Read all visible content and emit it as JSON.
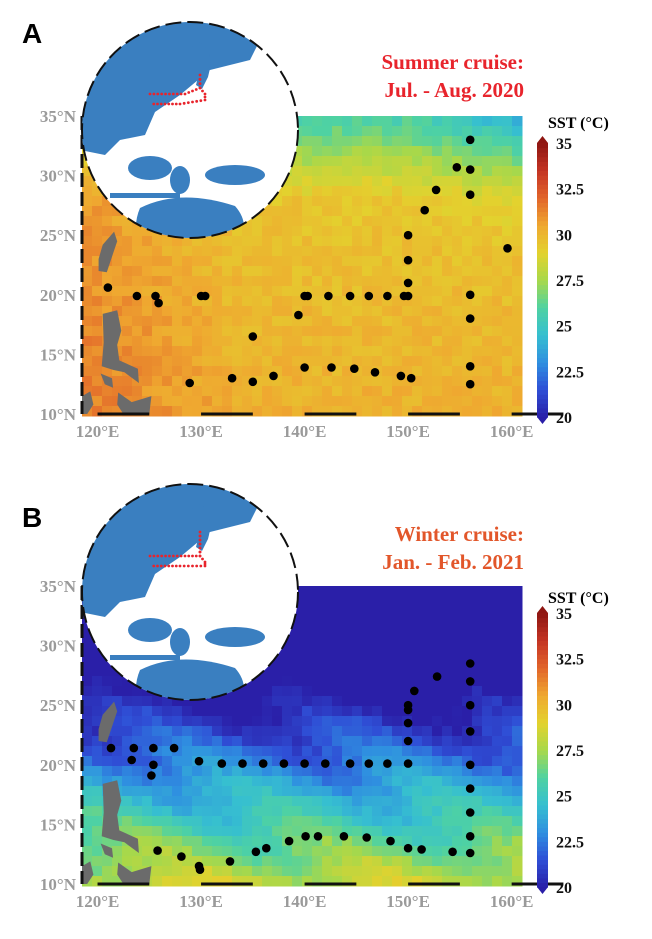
{
  "colors": {
    "summer_title": "#e8242c",
    "winter_title": "#e2562a",
    "axis_text": "#9a9a9a",
    "land": "#6b6b6b",
    "station": "#000000",
    "ocean_inset": "#3a7fc0",
    "route": "#e8242c",
    "colormap": [
      "#2a1fa8",
      "#2f4fd6",
      "#2f8fe0",
      "#36bfd0",
      "#4fd2a2",
      "#a8d84a",
      "#e3d22e",
      "#efa830",
      "#e2652a",
      "#c43424",
      "#8e1612"
    ]
  },
  "axes": {
    "lon_range": [
      118.5,
      161
    ],
    "lat_range": [
      10,
      35
    ],
    "x_ticks": [
      120,
      130,
      140,
      150,
      160
    ],
    "y_ticks": [
      10,
      15,
      20,
      25,
      30,
      35
    ],
    "x_tick_labels": [
      "120°E",
      "130°E",
      "140°E",
      "150°E",
      "160°E"
    ],
    "y_tick_labels": [
      "10°N",
      "15°N",
      "20°N",
      "25°N",
      "30°N",
      "35°N"
    ]
  },
  "colorbar": {
    "title": "SST (°C)",
    "range": [
      20,
      35
    ],
    "ticks": [
      20,
      22.5,
      25,
      27.5,
      30,
      32.5,
      35
    ],
    "tick_labels": [
      "20",
      "22.5",
      "25",
      "27.5",
      "30",
      "32.5",
      "35"
    ]
  },
  "panels": [
    {
      "letter": "A",
      "title_line1": "Summer cruise:",
      "title_line2": "Jul. - Aug. 2020",
      "sst_model": {
        "base": 30.2,
        "lat_gradient": -0.04,
        "north_cool": 3.5,
        "north_cool_start": 28,
        "west_warm": 1.2
      },
      "stations": [
        [
          121.0,
          20.6
        ],
        [
          123.8,
          19.9
        ],
        [
          125.6,
          19.9
        ],
        [
          125.9,
          19.3
        ],
        [
          130.0,
          19.9
        ],
        [
          130.4,
          19.9
        ],
        [
          135.0,
          16.5
        ],
        [
          139.4,
          18.3
        ],
        [
          140.0,
          19.9
        ],
        [
          140.3,
          19.9
        ],
        [
          142.3,
          19.9
        ],
        [
          144.4,
          19.9
        ],
        [
          146.2,
          19.9
        ],
        [
          148.0,
          19.9
        ],
        [
          149.6,
          19.9
        ],
        [
          150.0,
          19.9
        ],
        [
          150.0,
          21.0
        ],
        [
          150.0,
          22.9
        ],
        [
          150.0,
          25.0
        ],
        [
          151.6,
          27.1
        ],
        [
          152.7,
          28.8
        ],
        [
          154.7,
          30.7
        ],
        [
          156.0,
          30.5
        ],
        [
          156.0,
          28.4
        ],
        [
          156.0,
          33.0
        ],
        [
          159.6,
          23.9
        ],
        [
          156.0,
          20.0
        ],
        [
          156.0,
          18.0
        ],
        [
          156.0,
          14.0
        ],
        [
          156.0,
          12.5
        ],
        [
          128.9,
          12.6
        ],
        [
          133.0,
          13.0
        ],
        [
          135.0,
          12.7
        ],
        [
          137.0,
          13.2
        ],
        [
          140.0,
          13.9
        ],
        [
          142.6,
          13.9
        ],
        [
          144.8,
          13.8
        ],
        [
          146.8,
          13.5
        ],
        [
          149.3,
          13.2
        ],
        [
          150.3,
          13.0
        ]
      ]
    },
    {
      "letter": "B",
      "title_line1": "Winter cruise:",
      "title_line2": "Jan. - Feb. 2021",
      "sst_model": {
        "base": 28.2,
        "lat_gradient": -0.55,
        "north_cool": 0,
        "north_cool_start": 35,
        "west_warm": 0.2
      },
      "stations": [
        [
          121.3,
          21.4
        ],
        [
          123.3,
          20.4
        ],
        [
          123.5,
          21.4
        ],
        [
          125.4,
          21.4
        ],
        [
          125.4,
          20.0
        ],
        [
          125.2,
          19.1
        ],
        [
          127.4,
          21.4
        ],
        [
          129.8,
          20.3
        ],
        [
          132.0,
          20.1
        ],
        [
          134.0,
          20.1
        ],
        [
          136.0,
          20.1
        ],
        [
          138.0,
          20.1
        ],
        [
          140.0,
          20.1
        ],
        [
          142.0,
          20.1
        ],
        [
          144.4,
          20.1
        ],
        [
          146.2,
          20.1
        ],
        [
          148.0,
          20.1
        ],
        [
          150.0,
          20.1
        ],
        [
          150.0,
          22.0
        ],
        [
          150.0,
          23.5
        ],
        [
          150.0,
          25.0
        ],
        [
          150.0,
          24.6
        ],
        [
          150.6,
          26.2
        ],
        [
          152.8,
          27.4
        ],
        [
          156.0,
          28.5
        ],
        [
          156.0,
          27.0
        ],
        [
          156.0,
          25.0
        ],
        [
          156.0,
          22.8
        ],
        [
          156.0,
          20.0
        ],
        [
          156.0,
          18.0
        ],
        [
          156.0,
          16.0
        ],
        [
          156.0,
          14.0
        ],
        [
          156.0,
          12.6
        ],
        [
          125.8,
          12.8
        ],
        [
          128.1,
          12.3
        ],
        [
          129.8,
          11.5
        ],
        [
          129.9,
          11.2
        ],
        [
          132.8,
          11.9
        ],
        [
          135.3,
          12.7
        ],
        [
          136.3,
          13.0
        ],
        [
          138.5,
          13.6
        ],
        [
          140.1,
          14.0
        ],
        [
          141.3,
          14.0
        ],
        [
          143.8,
          14.0
        ],
        [
          146.0,
          13.9
        ],
        [
          148.3,
          13.6
        ],
        [
          150.0,
          13.0
        ],
        [
          151.3,
          12.9
        ],
        [
          154.3,
          12.7
        ]
      ]
    }
  ]
}
